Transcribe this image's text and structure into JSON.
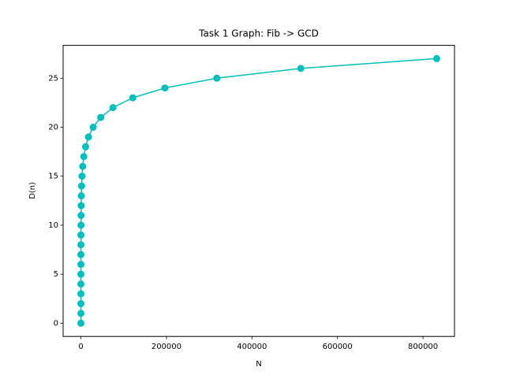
{
  "chart_data": {
    "type": "line",
    "title": "Task 1 Graph: Fib -> GCD",
    "x_label": "N",
    "y_label": "D(n)",
    "x": [
      2,
      3,
      5,
      8,
      13,
      21,
      34,
      55,
      89,
      144,
      233,
      377,
      610,
      987,
      1597,
      2584,
      4181,
      6765,
      10946,
      17711,
      28657,
      46368,
      75025,
      121393,
      196418,
      317811,
      514229,
      832040
    ],
    "series": [
      {
        "color": "#00bfbf",
        "values": [
          0,
          1,
          2,
          3,
          4,
          5,
          6,
          7,
          8,
          9,
          10,
          11,
          12,
          13,
          14,
          15,
          16,
          17,
          18,
          19,
          20,
          21,
          22,
          23,
          24,
          25,
          26,
          27
        ]
      }
    ],
    "xlim": [
      -41600,
      873640
    ],
    "ylim": [
      -1.35,
      28.35
    ],
    "xticks": [
      0,
      200000,
      400000,
      600000,
      800000
    ],
    "yticks": [
      0,
      5,
      10,
      15,
      20,
      25
    ]
  }
}
